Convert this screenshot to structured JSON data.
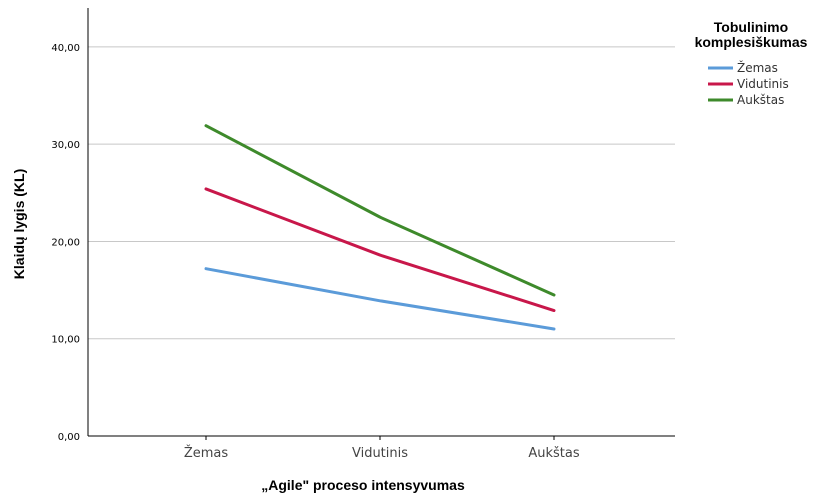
{
  "chart_data": {
    "type": "line",
    "title": "",
    "xlabel": "„Agile\" proceso intensyvumas",
    "ylabel": "Klaidų lygis (KL)",
    "categories": [
      "Žemas",
      "Vidutinis",
      "Aukštas"
    ],
    "ylim": [
      0,
      44
    ],
    "yticks": [
      0,
      10,
      20,
      30,
      40
    ],
    "ytick_labels": [
      "0,00",
      "10,00",
      "20,00",
      "30,00",
      "40,00"
    ],
    "grid": true,
    "legend": {
      "title_line1": "Tobulinimo",
      "title_line2": "komplesiškumas",
      "placement": "top-right"
    },
    "series": [
      {
        "name": "Žemas",
        "values": [
          17.2,
          13.9,
          11.0
        ],
        "color": "#5b9bd9"
      },
      {
        "name": "Vidutinis",
        "values": [
          25.4,
          18.6,
          12.9
        ],
        "color": "#c8174a"
      },
      {
        "name": "Aukštas",
        "values": [
          31.9,
          22.5,
          14.5
        ],
        "color": "#3e8a2b"
      }
    ]
  }
}
